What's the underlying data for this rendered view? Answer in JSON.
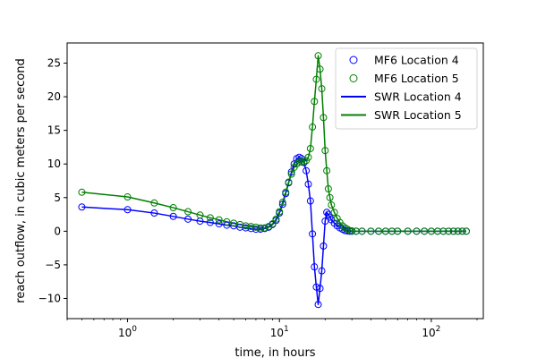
{
  "chart_data": {
    "type": "line",
    "title": "",
    "xlabel": "time, in hours",
    "ylabel": "reach outflow, in cubic meters per second",
    "x_scale": "log",
    "xlim": [
      0.4,
      220
    ],
    "ylim": [
      -13,
      28
    ],
    "x_ticks": [
      1,
      10,
      100
    ],
    "x_tick_labels": [
      "10^0",
      "10^1",
      "10^2"
    ],
    "y_ticks": [
      -10,
      -5,
      0,
      5,
      10,
      15,
      20,
      25
    ],
    "y_tick_labels": [
      "−10",
      "−5",
      "0",
      "5",
      "10",
      "15",
      "20",
      "25"
    ],
    "grid": false,
    "legend_position": "top-right",
    "series": [
      {
        "name": "MF6 Location 4",
        "kind": "markers",
        "color": "#0000ff",
        "x": [
          0.5,
          1,
          1.5,
          2,
          2.5,
          3,
          3.5,
          4,
          4.5,
          5,
          5.5,
          6,
          6.5,
          7,
          7.5,
          8,
          8.5,
          9,
          9.5,
          10,
          10.5,
          11,
          11.5,
          12,
          12.5,
          13,
          13.5,
          14,
          14.5,
          15,
          15.5,
          16,
          16.5,
          17,
          17.5,
          18,
          18.5,
          19,
          19.5,
          20,
          20.5,
          21,
          21.5,
          22,
          23,
          24,
          25,
          26,
          27,
          28,
          29,
          30,
          32,
          35,
          40,
          45,
          50,
          55,
          60,
          70,
          80,
          90,
          100,
          110,
          120,
          130,
          140,
          150,
          160,
          170
        ],
        "y": [
          3.6,
          3.2,
          2.7,
          2.2,
          1.8,
          1.5,
          1.3,
          1.1,
          0.9,
          0.8,
          0.6,
          0.5,
          0.4,
          0.3,
          0.3,
          0.4,
          0.6,
          1.0,
          1.6,
          2.7,
          4.0,
          5.6,
          7.2,
          8.8,
          10.0,
          10.8,
          11.0,
          10.8,
          10.2,
          9.0,
          7.0,
          4.5,
          -0.4,
          -5.3,
          -8.3,
          -10.9,
          -8.5,
          -5.9,
          -2.2,
          1.5,
          2.8,
          2.5,
          2.1,
          1.7,
          1.2,
          0.8,
          0.5,
          0.3,
          0.1,
          0.05,
          0,
          0,
          0,
          0,
          0,
          0,
          0,
          0,
          0,
          0,
          0,
          0,
          0,
          0,
          0,
          0,
          0,
          0,
          0,
          0
        ]
      },
      {
        "name": "MF6 Location 5",
        "kind": "markers",
        "color": "#008000",
        "x": [
          0.5,
          1,
          1.5,
          2,
          2.5,
          3,
          3.5,
          4,
          4.5,
          5,
          5.5,
          6,
          6.5,
          7,
          7.5,
          8,
          8.5,
          9,
          9.5,
          10,
          10.5,
          11,
          11.5,
          12,
          12.5,
          13,
          13.5,
          14,
          14.5,
          15,
          15.5,
          16,
          16.5,
          17,
          17.5,
          18,
          18.5,
          19,
          19.5,
          20,
          20.5,
          21,
          21.5,
          22,
          23,
          24,
          25,
          26,
          27,
          28,
          29,
          30,
          32,
          35,
          40,
          45,
          50,
          55,
          60,
          70,
          80,
          90,
          100,
          110,
          120,
          130,
          140,
          150,
          160,
          170
        ],
        "y": [
          5.8,
          5.1,
          4.2,
          3.5,
          2.9,
          2.4,
          2.0,
          1.7,
          1.4,
          1.2,
          1.0,
          0.8,
          0.7,
          0.6,
          0.5,
          0.5,
          0.7,
          1.1,
          1.8,
          2.9,
          4.3,
          5.8,
          7.3,
          8.5,
          9.5,
          10.0,
          10.3,
          10.3,
          10.4,
          10.5,
          11.0,
          12.3,
          15.5,
          19.3,
          22.6,
          26.1,
          24.1,
          21.2,
          16.9,
          12.0,
          9.0,
          6.3,
          5.0,
          3.9,
          2.8,
          1.9,
          1.3,
          0.8,
          0.5,
          0.3,
          0.1,
          0.05,
          0,
          0,
          0,
          0,
          0,
          0,
          0,
          0,
          0,
          0,
          0,
          0,
          0,
          0,
          0,
          0,
          0,
          0
        ]
      },
      {
        "name": "SWR Location 4",
        "kind": "line",
        "color": "#0000ff",
        "x": [
          0.5,
          1,
          1.5,
          2,
          2.5,
          3,
          3.5,
          4,
          4.5,
          5,
          5.5,
          6,
          6.5,
          7,
          7.5,
          8,
          8.5,
          9,
          9.5,
          10,
          10.5,
          11,
          11.5,
          12,
          12.5,
          13,
          13.5,
          14,
          14.5,
          15,
          15.5,
          16,
          16.5,
          17,
          17.5,
          18,
          18.5,
          19,
          19.5,
          20,
          20.5,
          21,
          21.5,
          22,
          23,
          24,
          25,
          26,
          27,
          28,
          29,
          30,
          32,
          35,
          40,
          45,
          50,
          55,
          60,
          70,
          80,
          90,
          100,
          110,
          120,
          130,
          140,
          150,
          160,
          170
        ],
        "y": [
          3.6,
          3.2,
          2.7,
          2.2,
          1.8,
          1.5,
          1.3,
          1.1,
          0.9,
          0.8,
          0.6,
          0.5,
          0.4,
          0.3,
          0.3,
          0.4,
          0.6,
          1.0,
          1.6,
          2.7,
          4.0,
          5.6,
          7.2,
          8.8,
          10.0,
          10.8,
          11.0,
          10.8,
          10.2,
          9.0,
          7.0,
          4.5,
          -0.4,
          -5.3,
          -8.3,
          -10.9,
          -8.5,
          -5.9,
          -2.2,
          1.5,
          2.8,
          2.5,
          2.1,
          1.7,
          1.2,
          0.8,
          0.5,
          0.3,
          0.1,
          0.05,
          0,
          0,
          0,
          0,
          0,
          0,
          0,
          0,
          0,
          0,
          0,
          0,
          0,
          0,
          0,
          0,
          0,
          0,
          0,
          0
        ]
      },
      {
        "name": "SWR Location 5",
        "kind": "line",
        "color": "#008000",
        "x": [
          0.5,
          1,
          1.5,
          2,
          2.5,
          3,
          3.5,
          4,
          4.5,
          5,
          5.5,
          6,
          6.5,
          7,
          7.5,
          8,
          8.5,
          9,
          9.5,
          10,
          10.5,
          11,
          11.5,
          12,
          12.5,
          13,
          13.5,
          14,
          14.5,
          15,
          15.5,
          16,
          16.5,
          17,
          17.5,
          18,
          18.5,
          19,
          19.5,
          20,
          20.5,
          21,
          21.5,
          22,
          23,
          24,
          25,
          26,
          27,
          28,
          29,
          30,
          32,
          35,
          40,
          45,
          50,
          55,
          60,
          70,
          80,
          90,
          100,
          110,
          120,
          130,
          140,
          150,
          160,
          170
        ],
        "y": [
          5.8,
          5.1,
          4.2,
          3.5,
          2.9,
          2.4,
          2.0,
          1.7,
          1.4,
          1.2,
          1.0,
          0.8,
          0.7,
          0.6,
          0.5,
          0.5,
          0.7,
          1.1,
          1.8,
          2.9,
          4.3,
          5.8,
          7.3,
          8.5,
          9.5,
          10.0,
          10.3,
          10.3,
          10.4,
          10.5,
          11.0,
          12.3,
          15.5,
          19.3,
          22.6,
          26.1,
          24.1,
          21.2,
          16.9,
          12.0,
          9.0,
          6.3,
          5.0,
          3.9,
          2.8,
          1.9,
          1.3,
          0.8,
          0.5,
          0.3,
          0.1,
          0.05,
          0,
          0,
          0,
          0,
          0,
          0,
          0,
          0,
          0,
          0,
          0,
          0,
          0,
          0,
          0,
          0,
          0,
          0
        ]
      }
    ]
  }
}
